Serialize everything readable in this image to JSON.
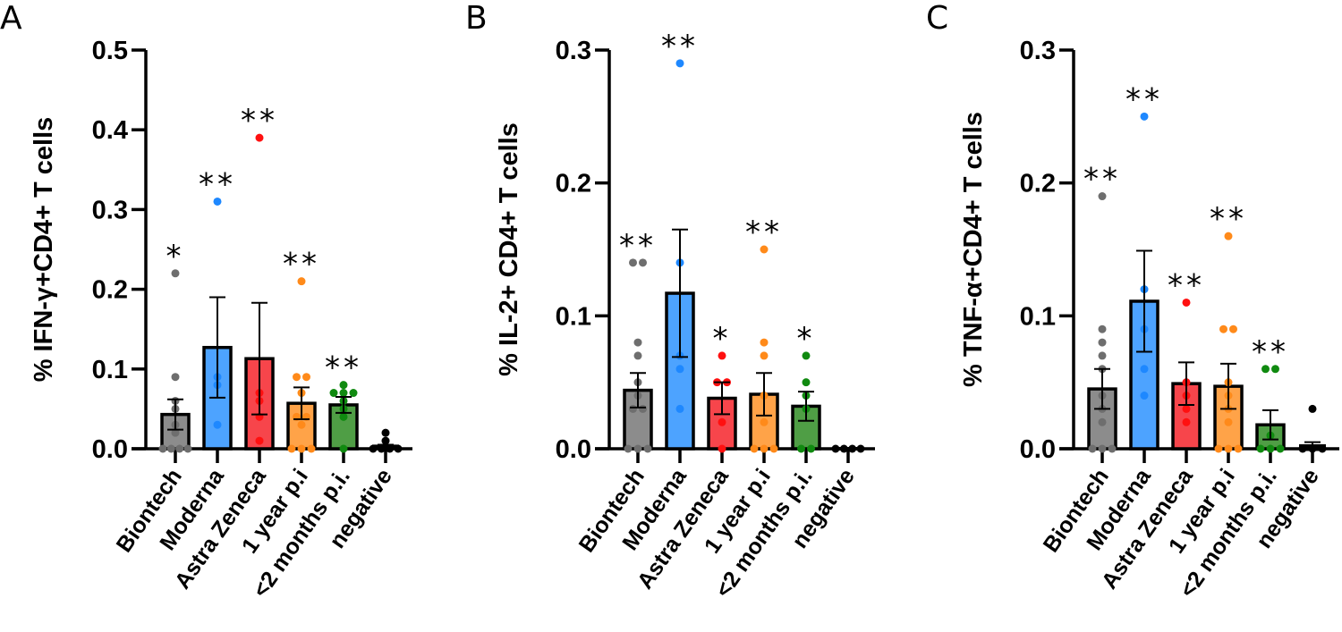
{
  "chart_data": [
    {
      "type": "bar",
      "panel_label": "A",
      "ylabel": "% IFN-γ+CD4+ T cells",
      "ylim": [
        0,
        0.5
      ],
      "yticks": [
        "0.0",
        "0.1",
        "0.2",
        "0.3",
        "0.4",
        "0.5"
      ],
      "categories": [
        "Biontech",
        "Moderna",
        "Astra Zeneca",
        "1 year p.i",
        "<2 months p.i.",
        "negative"
      ],
      "means": [
        0.043,
        0.127,
        0.113,
        0.057,
        0.055,
        0.003
      ],
      "sem": [
        0.019,
        0.063,
        0.07,
        0.02,
        0.01,
        0.002
      ],
      "points": [
        [
          0.22,
          0.09,
          0.06,
          0.05,
          0.03,
          0.02,
          0,
          0,
          0,
          0
        ],
        [
          0.31,
          0.09,
          0.08,
          0.03
        ],
        [
          0.39,
          0.07,
          0.06,
          0.04,
          0.01
        ],
        [
          0.21,
          0.09,
          0.09,
          0.07,
          0.04,
          0.04,
          0.03,
          0,
          0,
          0
        ],
        [
          0.08,
          0.07,
          0.07,
          0.07,
          0.06,
          0.05,
          0.04,
          0
        ],
        [
          0.02,
          0.01,
          0,
          0,
          0,
          0
        ]
      ],
      "significance": [
        "*",
        "**",
        "**",
        "**",
        "**",
        ""
      ]
    },
    {
      "type": "bar",
      "panel_label": "B",
      "ylabel": "% IL-2+ CD4+ T cells",
      "ylim": [
        0,
        0.3
      ],
      "yticks": [
        "0.0",
        "0.1",
        "0.2",
        "0.3"
      ],
      "categories": [
        "Biontech",
        "Moderna",
        "Astra Zeneca",
        "1 year p.i",
        "<2 months p.i.",
        "negative"
      ],
      "means": [
        0.044,
        0.117,
        0.038,
        0.041,
        0.032,
        0.0
      ],
      "sem": [
        0.013,
        0.048,
        0.012,
        0.016,
        0.011,
        0.0
      ],
      "points": [
        [
          0.14,
          0.14,
          0.08,
          0.07,
          0.05,
          0.04,
          0.03,
          0.03,
          0,
          0,
          0
        ],
        [
          0.29,
          0.14,
          0.07,
          0.06,
          0.03
        ],
        [
          0.07,
          0.05,
          0.05,
          0.02,
          0
        ],
        [
          0.15,
          0.08,
          0.07,
          0.04,
          0.02,
          0,
          0,
          0
        ],
        [
          0.07,
          0.05,
          0.04,
          0.03,
          0,
          0
        ],
        [
          0,
          0,
          0,
          0
        ]
      ],
      "significance": [
        "**",
        "**",
        "*",
        "**",
        "*",
        ""
      ]
    },
    {
      "type": "bar",
      "panel_label": "C",
      "ylabel": "% TNF-α+CD4+ T cells",
      "ylim": [
        0,
        0.3
      ],
      "yticks": [
        "0.0",
        "0.1",
        "0.2",
        "0.3"
      ],
      "categories": [
        "Biontech",
        "Moderna",
        "Astra Zeneca",
        "1 year p.i",
        "<2 months p.i.",
        "negative"
      ],
      "means": [
        0.045,
        0.111,
        0.049,
        0.047,
        0.018,
        0.002
      ],
      "sem": [
        0.015,
        0.038,
        0.016,
        0.017,
        0.011,
        0.003
      ],
      "points": [
        [
          0.19,
          0.09,
          0.08,
          0.07,
          0.06,
          0.04,
          0.03,
          0.02,
          0,
          0,
          0
        ],
        [
          0.25,
          0.12,
          0.09,
          0.06,
          0.04
        ],
        [
          0.11,
          0.05,
          0.04,
          0.03,
          0.02
        ],
        [
          0.16,
          0.09,
          0.09,
          0.05,
          0.04,
          0.03,
          0.02,
          0,
          0,
          0
        ],
        [
          0.06,
          0.06,
          0.01,
          0,
          0,
          0
        ],
        [
          0.03,
          0,
          0,
          0
        ]
      ],
      "significance": [
        "**",
        "**",
        "**",
        "**",
        "**",
        ""
      ]
    }
  ],
  "colors": {
    "bars": [
      "#8c8c8c",
      "#4da3ff",
      "#f7454b",
      "#ffa348",
      "#4f9e45",
      "#000000"
    ],
    "points": [
      "#6e6e6e",
      "#1e88ff",
      "#ff1010",
      "#ff8a1a",
      "#108a10",
      "#000000"
    ]
  }
}
